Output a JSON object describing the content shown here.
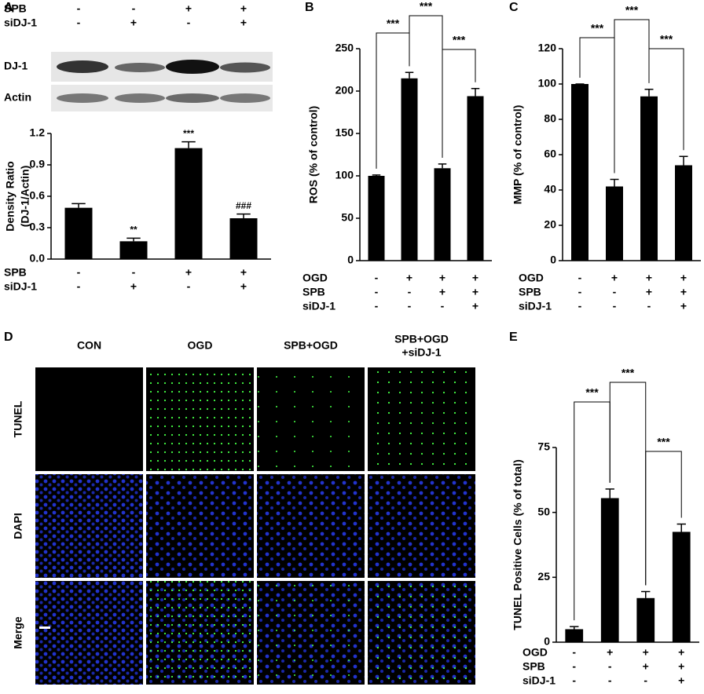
{
  "chart_data": [
    {
      "type": "bar",
      "letter": "A",
      "blot_conditions": [
        {
          "name": "SPB",
          "signs": [
            "-",
            "-",
            "+",
            "+"
          ]
        },
        {
          "name": "siDJ-1",
          "signs": [
            "-",
            "+",
            "-",
            "+"
          ]
        }
      ],
      "blot_labels": [
        "DJ-1",
        "Actin"
      ],
      "ylabel": [
        "Density Ratio",
        "(DJ-1/Actin)"
      ],
      "categories": [
        null,
        null,
        null,
        null
      ],
      "values": [
        0.49,
        0.17,
        1.06,
        0.39
      ],
      "errors": [
        0.04,
        0.03,
        0.06,
        0.04
      ],
      "value_annotations": [
        null,
        "**",
        "***",
        "###"
      ],
      "ylim": [
        0,
        1.2
      ],
      "yticks": [
        {
          "value": 0,
          "label": "0.0"
        },
        0.3,
        0.6,
        0.9,
        1.2
      ],
      "color": "#000000",
      "conditions": [
        {
          "name": "SPB",
          "signs": [
            "-",
            "-",
            "+",
            "+"
          ]
        },
        {
          "name": "siDJ-1",
          "signs": [
            "-",
            "+",
            "-",
            "+"
          ]
        }
      ]
    },
    {
      "type": "bar",
      "letter": "B",
      "ylabel": [
        "ROS (% of control)"
      ],
      "categories": [
        null,
        null,
        null,
        null
      ],
      "values": [
        100,
        215,
        109,
        194
      ],
      "errors": [
        1,
        7,
        5,
        9
      ],
      "ylim": [
        0,
        250
      ],
      "yticks": [
        0,
        50,
        100,
        150,
        200,
        250
      ],
      "color": "#000000",
      "annotations": [
        "***",
        "***",
        "***"
      ],
      "conditions": [
        {
          "name": "OGD",
          "signs": [
            "-",
            "+",
            "+",
            "+"
          ]
        },
        {
          "name": "SPB",
          "signs": [
            "-",
            "-",
            "+",
            "+"
          ]
        },
        {
          "name": "siDJ-1",
          "signs": [
            "-",
            "-",
            "-",
            "+"
          ]
        }
      ]
    },
    {
      "type": "bar",
      "letter": "C",
      "ylabel": [
        "MMP (% of control)"
      ],
      "categories": [
        null,
        null,
        null,
        null
      ],
      "values": [
        100,
        42,
        93,
        54
      ],
      "errors": [
        0,
        4,
        4,
        5
      ],
      "ylim": [
        0,
        120
      ],
      "yticks": [
        0,
        20,
        40,
        60,
        80,
        100,
        120
      ],
      "color": "#000000",
      "annotations": [
        "***",
        "***",
        "***"
      ],
      "conditions": [
        {
          "name": "OGD",
          "signs": [
            "-",
            "+",
            "+",
            "+"
          ]
        },
        {
          "name": "SPB",
          "signs": [
            "-",
            "-",
            "+",
            "+"
          ]
        },
        {
          "name": "siDJ-1",
          "signs": [
            "-",
            "-",
            "-",
            "+"
          ]
        }
      ]
    },
    {
      "type": "bar",
      "letter": "E",
      "ylabel": [
        "TUNEL Positive Cells (% of total)"
      ],
      "categories": [
        null,
        null,
        null,
        null
      ],
      "values": [
        5,
        55.5,
        17,
        42.5
      ],
      "errors": [
        1,
        3.5,
        2.5,
        3
      ],
      "ylim": [
        0,
        75
      ],
      "yticks": [
        0,
        25,
        50,
        75
      ],
      "color": "#000000",
      "annotations": [
        "***",
        "***",
        "***"
      ],
      "conditions": [
        {
          "name": "OGD",
          "signs": [
            "-",
            "+",
            "+",
            "+"
          ]
        },
        {
          "name": "SPB",
          "signs": [
            "-",
            "-",
            "+",
            "+"
          ]
        },
        {
          "name": "siDJ-1",
          "signs": [
            "-",
            "-",
            "-",
            "+"
          ]
        }
      ]
    }
  ],
  "image_panel": {
    "letter": "D",
    "columns": [
      [
        "CON"
      ],
      [
        "OGD"
      ],
      [
        "SPB+OGD"
      ],
      [
        "SPB+OGD",
        "+siDJ-1"
      ]
    ],
    "rows": [
      "TUNEL",
      "DAPI",
      "Merge"
    ]
  }
}
